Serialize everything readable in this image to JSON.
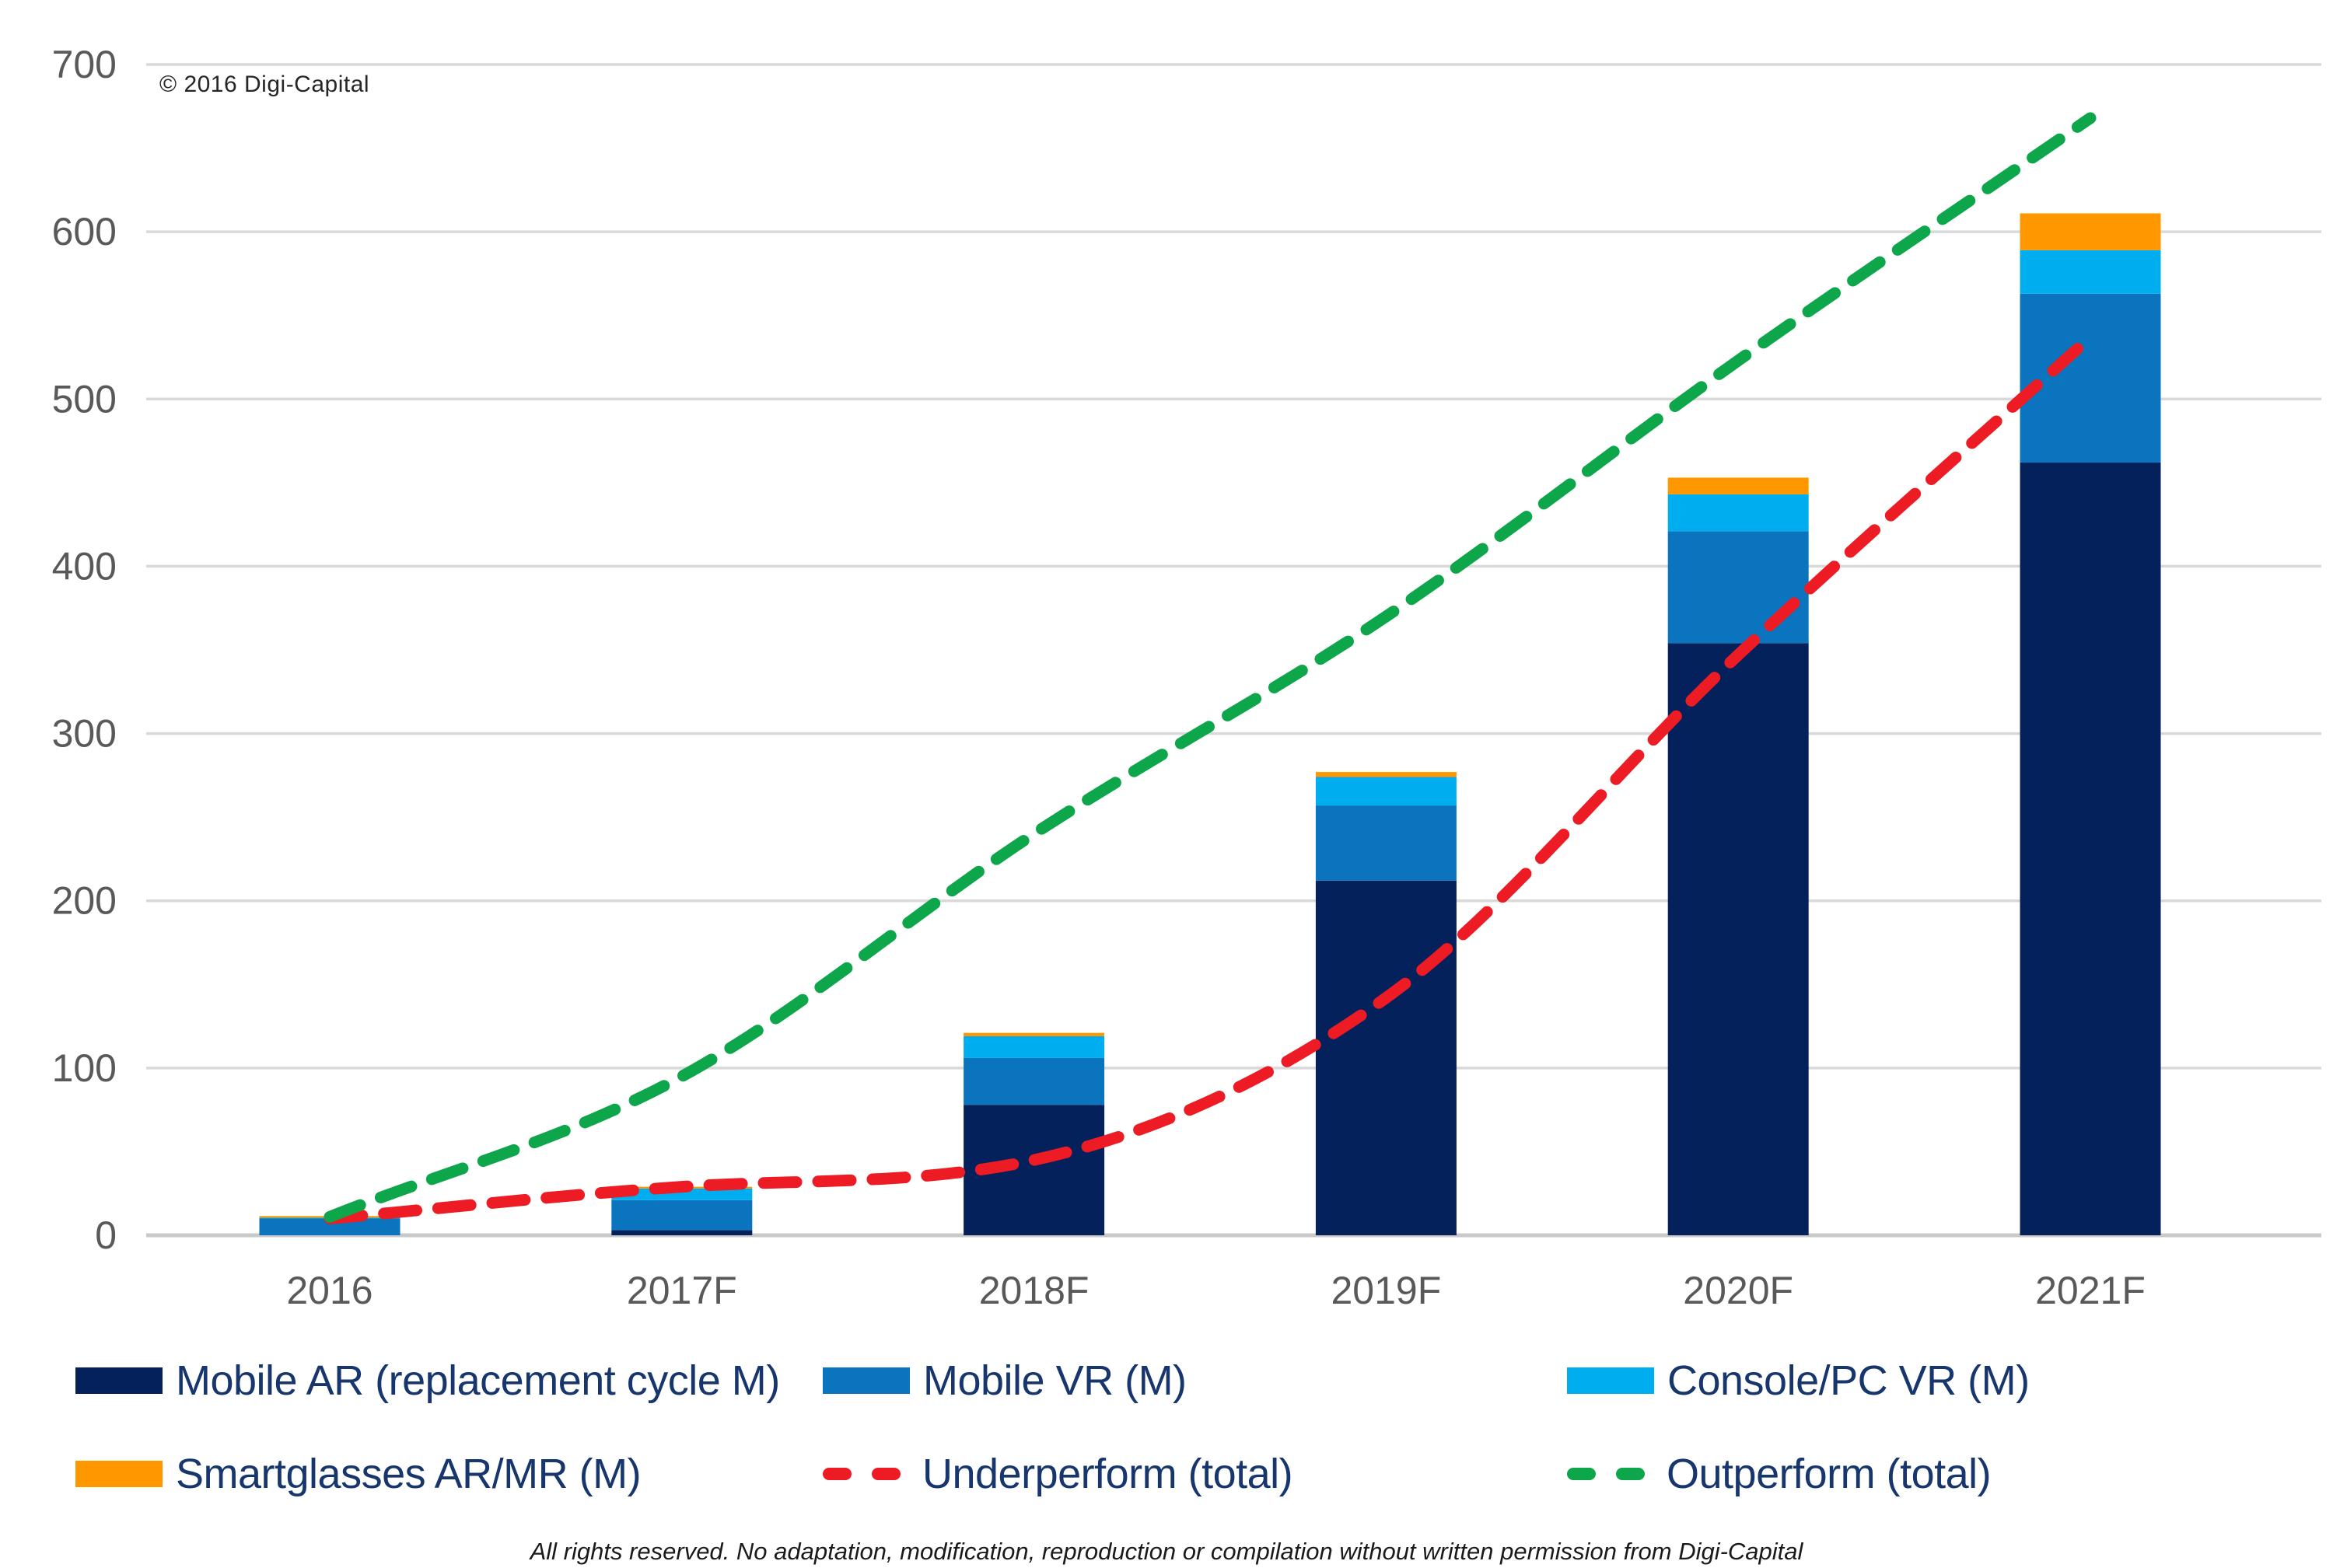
{
  "header": {
    "copyright": "© 2016 Digi-Capital"
  },
  "footer": {
    "disclaimer": "All rights reserved. No adaptation, modification, reproduction or compilation without written permission from Digi-Capital"
  },
  "axis": {
    "y_tick_labels": [
      "0",
      "100",
      "200",
      "300",
      "400",
      "500",
      "600",
      "700"
    ],
    "x_tick_labels": [
      "2016",
      "2017F",
      "2018F",
      "2019F",
      "2020F",
      "2021F"
    ]
  },
  "colors": {
    "grid": "#D9D9D9",
    "axis_line": "#C9C9C9",
    "axis_text": "#595959",
    "legend_text": "#17366D",
    "background": "#FFFFFF"
  },
  "chart_data": {
    "type": "bar",
    "stacked": true,
    "title": "",
    "xlabel": "",
    "ylabel": "",
    "ylim": [
      0,
      700
    ],
    "ytick_step": 100,
    "grid": true,
    "legend_position": "bottom",
    "categories": [
      "2016",
      "2017F",
      "2018F",
      "2019F",
      "2020F",
      "2021F"
    ],
    "series": [
      {
        "name": "Mobile AR (replacement cycle M)",
        "color": "#05215C",
        "values": [
          0,
          3,
          78,
          212,
          354,
          462
        ]
      },
      {
        "name": "Mobile VR (M)",
        "color": "#0B74BE",
        "values": [
          10,
          18,
          28,
          45,
          67,
          101
        ]
      },
      {
        "name": "Console/PC VR (M)",
        "color": "#00AEEF",
        "values": [
          0.5,
          7,
          13,
          17,
          22,
          26
        ]
      },
      {
        "name": "Smartglasses AR/MR (M)",
        "color": "#FF9800",
        "values": [
          1,
          1,
          2,
          3,
          10,
          22
        ]
      }
    ],
    "lines": [
      {
        "name": "Underperform (total)",
        "color": "#ED1B23",
        "style": "dashed",
        "values": [
          10,
          29,
          45,
          142,
          347,
          537
        ]
      },
      {
        "name": "Outperform (total)",
        "color": "#0EA64A",
        "style": "dashed",
        "values": [
          11,
          95,
          240,
          370,
          523,
          668
        ]
      }
    ]
  }
}
